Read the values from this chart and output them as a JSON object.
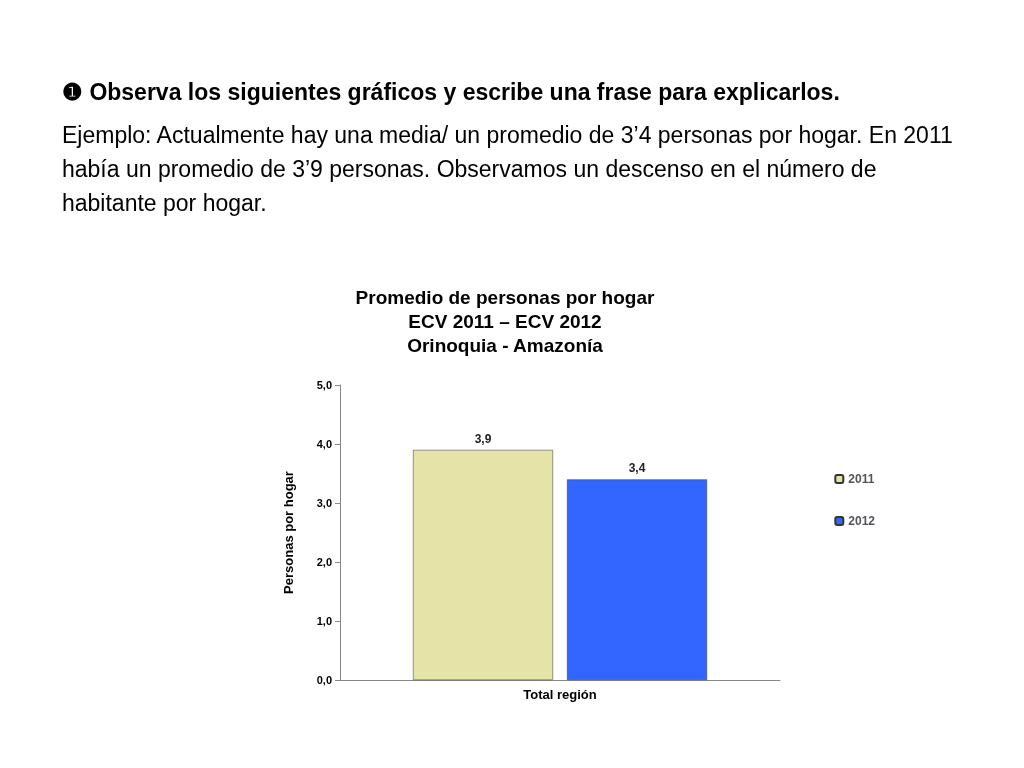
{
  "chart_data": {
    "type": "bar",
    "title": "Promedio de personas por hogar\nECV 2011 – ECV 2012\nOrinoquia - Amazonía",
    "annotations": [
      "❶ Observa los siguientes gráficos y escribe una frase para explicarlos.",
      "Ejemplo: Actualmente hay una media/ un promedio de 3’4 personas por hogar. En 2011 había un promedio de 3’9 personas. Observamos un descenso en el número de habitante por hogar."
    ],
    "ylabel": "Personas por hogar",
    "categories": [
      "Total región"
    ],
    "series": [
      {
        "name": "2011",
        "color": "#e6e3a8",
        "values": [
          3.9
        ],
        "value_labels": [
          "3,9"
        ]
      },
      {
        "name": "2012",
        "color": "#3366ff",
        "values": [
          3.4
        ],
        "value_labels": [
          "3,4"
        ]
      }
    ],
    "ylim": [
      0,
      5
    ],
    "yticks": [
      {
        "value": 0,
        "label": "0,0"
      },
      {
        "value": 1,
        "label": "1,0"
      },
      {
        "value": 2,
        "label": "2,0"
      },
      {
        "value": 3,
        "label": "3,0"
      },
      {
        "value": 4,
        "label": "4,0"
      },
      {
        "value": 5,
        "label": "5,0"
      }
    ],
    "grid": false,
    "legend": "right"
  }
}
